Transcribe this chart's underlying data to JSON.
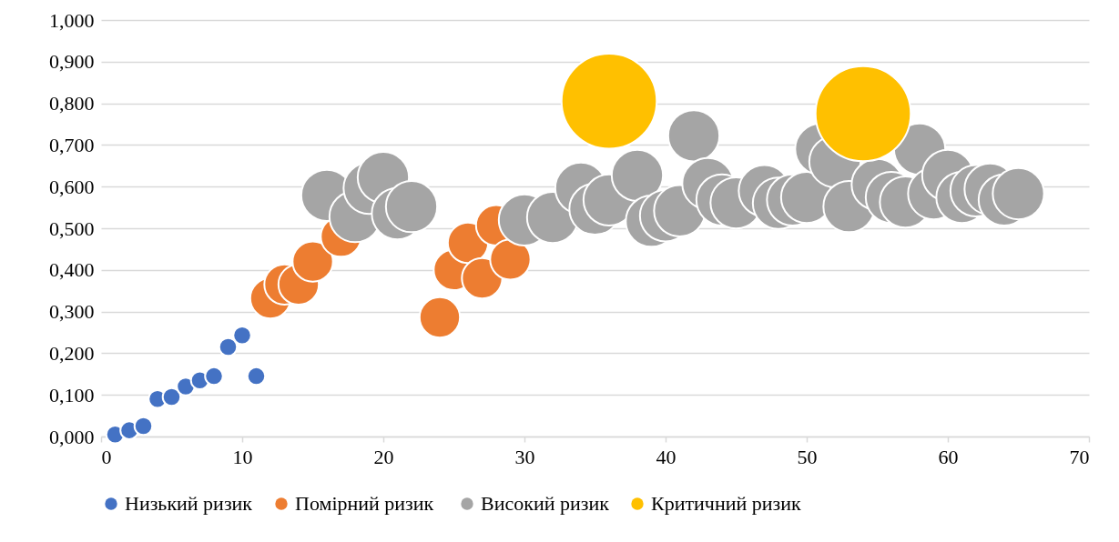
{
  "chart_data": {
    "type": "bubble",
    "xlim": [
      0,
      70
    ],
    "xticks": [
      0,
      10,
      20,
      30,
      40,
      50,
      60,
      70
    ],
    "ylim": [
      0,
      1
    ],
    "yticks": [
      {
        "value": 0,
        "label": "0,000"
      },
      {
        "value": 0.1,
        "label": "0,100"
      },
      {
        "value": 0.2,
        "label": "0,200"
      },
      {
        "value": 0.3,
        "label": "0,300"
      },
      {
        "value": 0.4,
        "label": "0,400"
      },
      {
        "value": 0.5,
        "label": "0,500"
      },
      {
        "value": 0.6,
        "label": "0,600"
      },
      {
        "value": 0.7,
        "label": "0,700"
      },
      {
        "value": 0.8,
        "label": "0,800"
      },
      {
        "value": 0.9,
        "label": "0,900"
      },
      {
        "value": 1,
        "label": "1,000"
      }
    ],
    "grid": "y",
    "legend": "bottom",
    "marker": "circle",
    "series": [
      {
        "name": "Низький ризик",
        "color": "#4472c4",
        "x": [
          1,
          2,
          3,
          4,
          5,
          6,
          7,
          8,
          9,
          10,
          11
        ],
        "values": [
          0.005,
          0.015,
          0.025,
          0.09,
          0.095,
          0.12,
          0.135,
          0.145,
          0.215,
          0.243,
          0.145
        ],
        "sizes": [
          0.035,
          0.035,
          0.035,
          0.035,
          0.035,
          0.035,
          0.035,
          0.035,
          0.035,
          0.035,
          0.035
        ]
      },
      {
        "name": "Помірний  ризик",
        "color": "#ed7d31",
        "x": [
          12,
          13,
          14,
          15,
          17,
          24,
          25,
          26,
          27,
          28,
          29
        ],
        "values": [
          0.332,
          0.365,
          0.365,
          0.42,
          0.48,
          0.286,
          0.4,
          0.465,
          0.38,
          0.507,
          0.425
        ],
        "sizes": [
          0.18,
          0.18,
          0.18,
          0.18,
          0.18,
          0.18,
          0.18,
          0.18,
          0.18,
          0.18,
          0.18
        ]
      },
      {
        "name": "Високий ризик",
        "color": "#a5a5a5",
        "x": [
          16,
          18,
          19,
          20,
          21,
          22,
          30,
          32,
          34,
          35,
          36,
          38,
          39,
          40,
          41,
          42,
          43,
          44,
          45,
          47,
          48,
          49,
          50,
          51,
          52,
          53,
          55,
          56,
          57,
          58,
          59,
          60,
          61,
          62,
          63,
          64,
          65
        ],
        "values": [
          0.579,
          0.528,
          0.596,
          0.622,
          0.535,
          0.552,
          0.52,
          0.526,
          0.596,
          0.546,
          0.568,
          0.627,
          0.517,
          0.53,
          0.542,
          0.722,
          0.607,
          0.568,
          0.561,
          0.59,
          0.56,
          0.568,
          0.574,
          0.69,
          0.66,
          0.552,
          0.605,
          0.574,
          0.563,
          0.69,
          0.583,
          0.627,
          0.574,
          0.59,
          0.594,
          0.568,
          0.583
        ],
        "sizes": [
          0.29,
          0.29,
          0.29,
          0.29,
          0.29,
          0.29,
          0.29,
          0.29,
          0.29,
          0.29,
          0.29,
          0.29,
          0.29,
          0.29,
          0.29,
          0.29,
          0.29,
          0.29,
          0.29,
          0.29,
          0.29,
          0.29,
          0.29,
          0.29,
          0.29,
          0.29,
          0.29,
          0.29,
          0.29,
          0.29,
          0.29,
          0.29,
          0.29,
          0.29,
          0.29,
          0.29,
          0.29
        ]
      },
      {
        "name": "Критичний ризик",
        "color": "#ffc000",
        "x": [
          36,
          54
        ],
        "values": [
          0.805,
          0.775
        ],
        "sizes": [
          1,
          1
        ]
      }
    ]
  }
}
